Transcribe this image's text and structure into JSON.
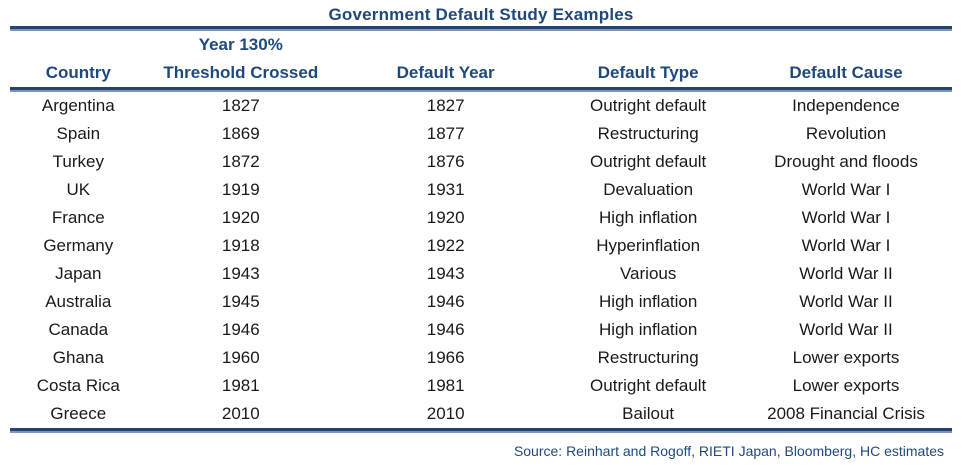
{
  "title": "Government Default Study Examples",
  "table": {
    "columns": [
      {
        "line1": "",
        "line2": "Country"
      },
      {
        "line1": "Year 130%",
        "line2": "Threshold Crossed"
      },
      {
        "line1": "",
        "line2": "Default Year"
      },
      {
        "line1": "",
        "line2": "Default Type"
      },
      {
        "line1": "",
        "line2": "Default Cause"
      }
    ],
    "rows": [
      [
        "Argentina",
        "1827",
        "1827",
        "Outright default",
        "Independence"
      ],
      [
        "Spain",
        "1869",
        "1877",
        "Restructuring",
        "Revolution"
      ],
      [
        "Turkey",
        "1872",
        "1876",
        "Outright default",
        "Drought and floods"
      ],
      [
        "UK",
        "1919",
        "1931",
        "Devaluation",
        "World War I"
      ],
      [
        "France",
        "1920",
        "1920",
        "High inflation",
        "World War I"
      ],
      [
        "Germany",
        "1918",
        "1922",
        "Hyperinflation",
        "World War I"
      ],
      [
        "Japan",
        "1943",
        "1943",
        "Various",
        "World War II"
      ],
      [
        "Australia",
        "1945",
        "1946",
        "High inflation",
        "World War II"
      ],
      [
        "Canada",
        "1946",
        "1946",
        "High inflation",
        "World War II"
      ],
      [
        "Ghana",
        "1960",
        "1966",
        "Restructuring",
        "Lower exports"
      ],
      [
        "Costa Rica",
        "1981",
        "1981",
        "Outright default",
        "Lower exports"
      ],
      [
        "Greece",
        "2010",
        "2010",
        "Bailout",
        "2008 Financial Crisis"
      ]
    ]
  },
  "source": "Source: Reinhart and Rogoff,  RIETI Japan, Bloomberg, HC estimates",
  "colors": {
    "heading": "#1F497D",
    "rule_dark": "#24436F",
    "rule_light": "#7C96BB",
    "body_text": "#1a1a1a"
  }
}
